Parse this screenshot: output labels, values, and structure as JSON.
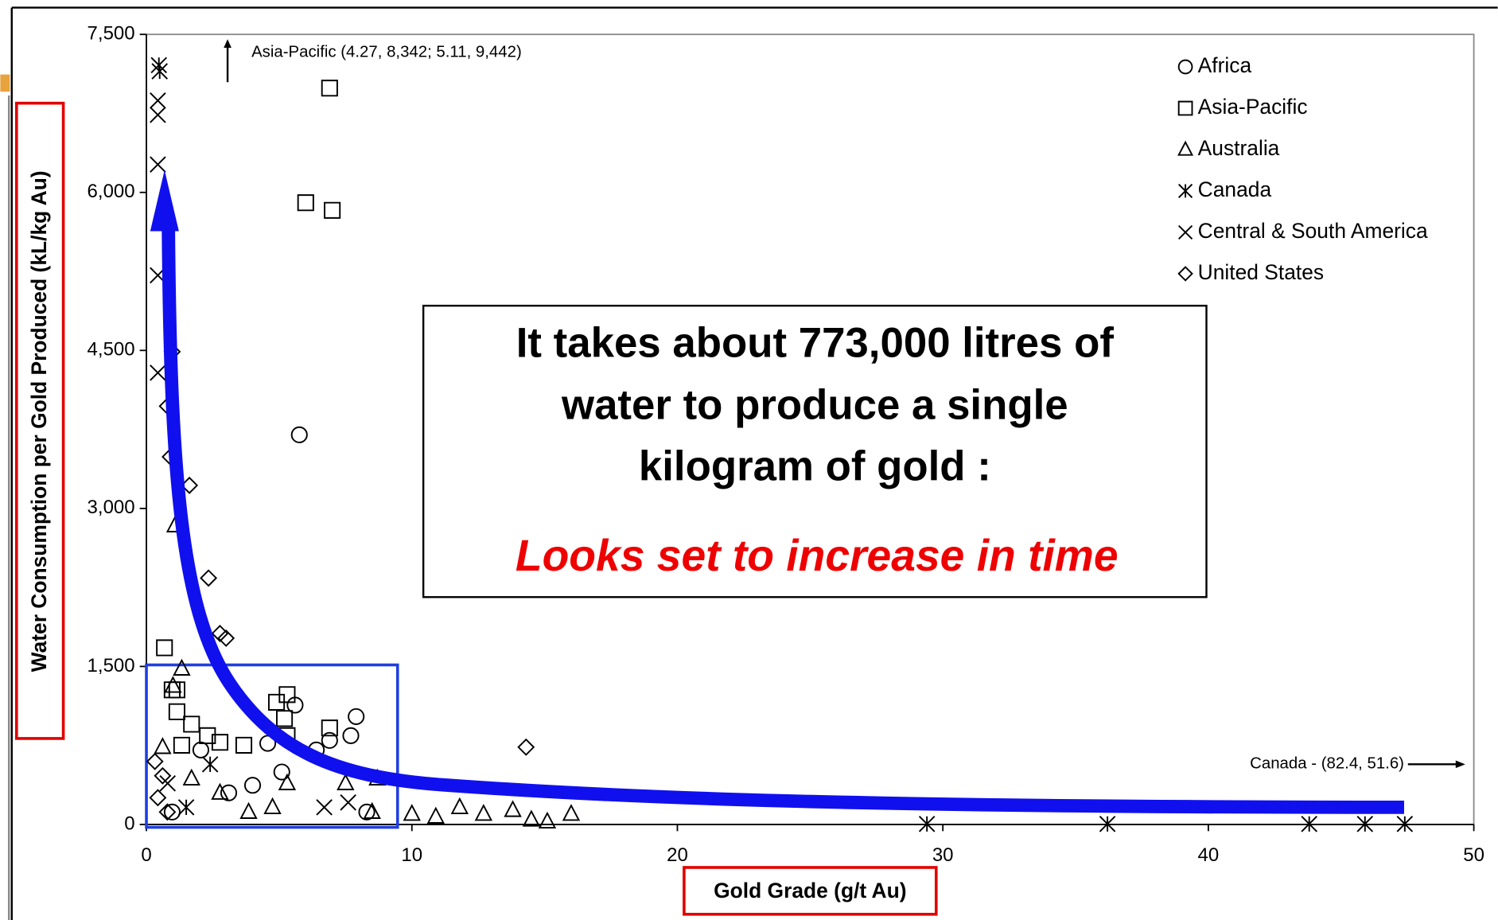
{
  "chart_data": {
    "type": "scatter",
    "xlabel": "Gold Grade (g/t Au)",
    "ylabel": "Water Consumption per Gold Produced (kL/kg Au)",
    "xlim": [
      0,
      50
    ],
    "ylim": [
      0,
      7500
    ],
    "xticks": [
      0,
      10,
      20,
      30,
      40,
      50
    ],
    "yticks": [
      0,
      {
        "value": 1500,
        "label": "1,500"
      },
      {
        "value": 3000,
        "label": "3,000"
      },
      {
        "value": 4500,
        "label": "4,500"
      },
      {
        "value": 6000,
        "label": "6,000"
      },
      {
        "value": 7500,
        "label": "7,500"
      }
    ],
    "legend": "upper right",
    "annotations": [
      "Asia-Pacific (4.27, 8,342; 5.11, 9,442)",
      "Canada - (82.4, 51.6)"
    ],
    "callout": [
      "It takes about 773,000 litres of",
      "water to produce a single",
      "kilogram of gold :",
      "Looks set to increase in time"
    ],
    "series": [
      {
        "name": "Africa",
        "marker": "circle",
        "color": "#000000",
        "x": [
          5.76,
          7.9,
          7.7,
          6.9,
          5.6,
          4.57,
          5.1,
          6.4,
          2.05,
          4.0,
          8.3,
          3.1,
          0.97
        ],
        "y": [
          3699,
          1024,
          843,
          798,
          1133,
          770,
          498,
          707,
          707,
          372,
          118,
          300,
          118
        ]
      },
      {
        "name": "Asia-Pacific",
        "marker": "square",
        "color": "#000000",
        "x": [
          6.9,
          6.0,
          7.0,
          0.68,
          5.3,
          4.9,
          5.2,
          6.9,
          1.15,
          1.15,
          1.7,
          1.33,
          2.3,
          2.77,
          3.67,
          5.3,
          0.97
        ],
        "y": [
          6990,
          5902,
          5830,
          1677,
          1233,
          1160,
          1006,
          916,
          1278,
          1070,
          952,
          752,
          843,
          780,
          752,
          843,
          1278
        ]
      },
      {
        "name": "Australia",
        "marker": "triangle",
        "color": "#000000",
        "x": [
          1.08,
          1.33,
          1.0,
          0.61,
          8.7,
          7.5,
          10.0,
          10.9,
          11.8,
          12.7,
          13.8,
          14.5,
          15.1,
          16.0,
          8.5,
          5.3,
          2.77,
          3.85,
          4.75,
          1.7
        ],
        "y": [
          2838,
          1478,
          1315,
          734,
          435,
          390,
          100,
          73,
          163,
          100,
          136,
          45,
          27,
          100,
          118,
          390,
          300,
          118,
          163,
          435
        ]
      },
      {
        "name": "Canada",
        "marker": "asterisk",
        "color": "#000000",
        "x": [
          0.47,
          0.5,
          29.4,
          36.2,
          43.8,
          45.9,
          47.4,
          2.4,
          1.5
        ],
        "y": [
          7208,
          7150,
          5,
          5,
          5,
          5,
          5,
          571,
          163
        ]
      },
      {
        "name": "Central & South America",
        "marker": "x",
        "color": "#000000",
        "x": [
          0.43,
          0.43,
          0.43,
          0.43,
          0.43,
          0.8,
          7.6,
          6.7
        ],
        "y": [
          6265,
          6736,
          6872,
          5213,
          4288,
          390,
          209,
          163
        ]
      },
      {
        "name": "United States",
        "marker": "diamond",
        "color": "#000000",
        "x": [
          0.97,
          0.79,
          0.9,
          1.62,
          2.34,
          2.77,
          3.0,
          14.3,
          0.32,
          0.43,
          0.61,
          0.79
        ],
        "y": [
          4488,
          3971,
          3490,
          3219,
          2339,
          1813,
          1768,
          734,
          598,
          254,
          462,
          118
        ]
      }
    ]
  }
}
